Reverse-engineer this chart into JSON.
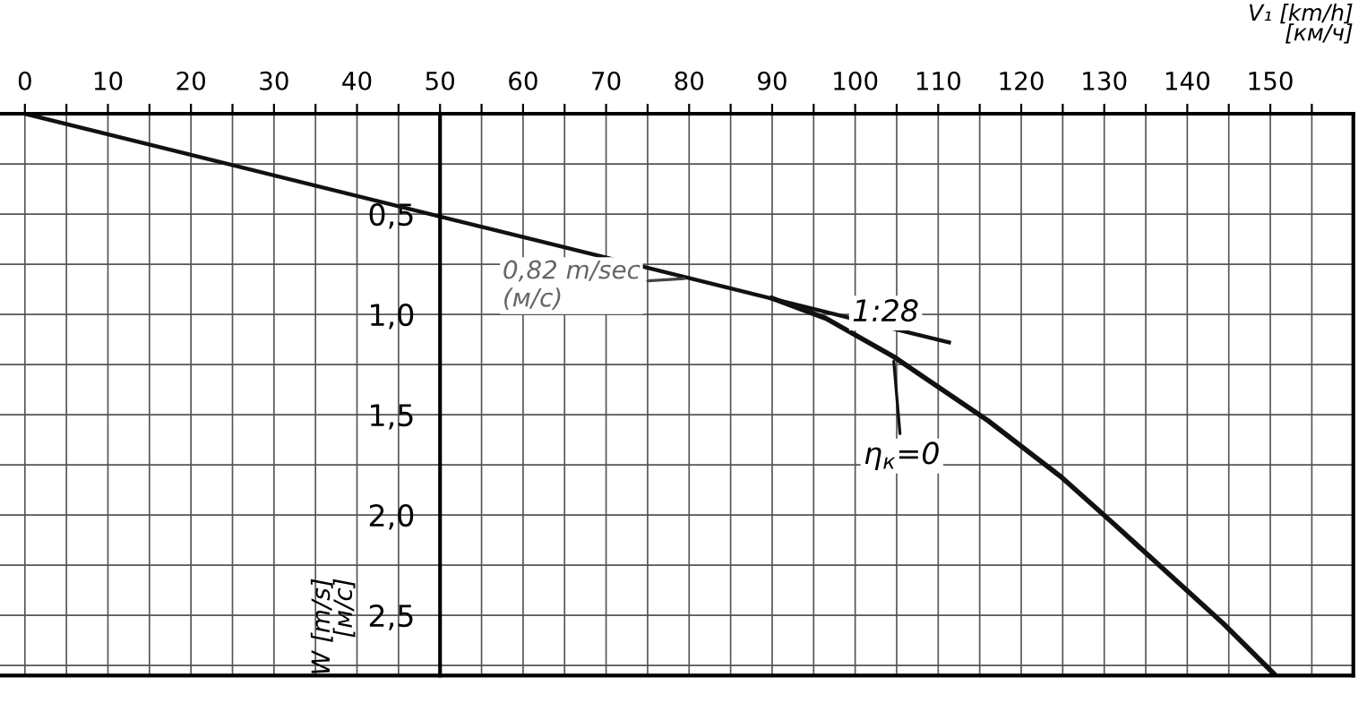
{
  "chart_data": {
    "type": "line",
    "xlabel": "V₁ [km/h]\n[км/ч]",
    "ylabel": "W [m/s]\n[м/с]",
    "series": [
      {
        "name": "1:28",
        "color": "#111111",
        "x": [
          0,
          111.3
        ],
        "values": [
          0,
          1.14
        ]
      },
      {
        "name": "η$_{к}$=0",
        "color": "#111111",
        "x": [
          90,
          96.5,
          104.6,
          116,
          124.8,
          131.3,
          144.3,
          150.4
        ],
        "values": [
          0.92,
          1.02,
          1.21,
          1.53,
          1.81,
          2.05,
          2.54,
          2.79
        ]
      }
    ],
    "annotations": [
      {
        "text": "0,82 m/sec\n(м/с)",
        "x": 80,
        "y": 0.82
      }
    ],
    "xlim": [
      -3,
      160
    ],
    "ylim": [
      2.8,
      0
    ],
    "xticks": [
      0,
      {
        "value": 5,
        "label": null
      },
      10,
      {
        "value": 15,
        "label": null
      },
      20,
      {
        "value": 25,
        "label": null
      },
      30,
      {
        "value": 35,
        "label": null
      },
      40,
      {
        "value": 45,
        "label": null
      },
      50,
      {
        "value": 55,
        "label": null
      },
      60,
      {
        "value": 65,
        "label": null
      },
      70,
      {
        "value": 75,
        "label": null
      },
      80,
      {
        "value": 85,
        "label": null
      },
      90,
      {
        "value": 95,
        "label": null
      },
      100,
      {
        "value": 105,
        "label": null
      },
      110,
      {
        "value": 115,
        "label": null
      },
      120,
      {
        "value": 125,
        "label": null
      },
      130,
      {
        "value": 135,
        "label": null
      },
      140,
      {
        "value": 145,
        "label": null
      },
      150,
      {
        "value": 155,
        "label": null
      }
    ],
    "yticks": [
      {
        "value": 0.25,
        "label": null
      },
      {
        "value": 0.5,
        "label": "0,5"
      },
      {
        "value": 0.75,
        "label": null
      },
      {
        "value": 1.0,
        "label": "1,0"
      },
      {
        "value": 1.25,
        "label": null
      },
      {
        "value": 1.5,
        "label": "1,5"
      },
      {
        "value": 1.75,
        "label": null
      },
      {
        "value": 2.0,
        "label": "2,0"
      },
      {
        "value": 2.25,
        "label": null
      },
      {
        "value": 2.5,
        "label": "2,5"
      },
      {
        "value": 2.75,
        "label": null
      }
    ],
    "grid": true,
    "line_style": "solid",
    "marker": "none"
  }
}
